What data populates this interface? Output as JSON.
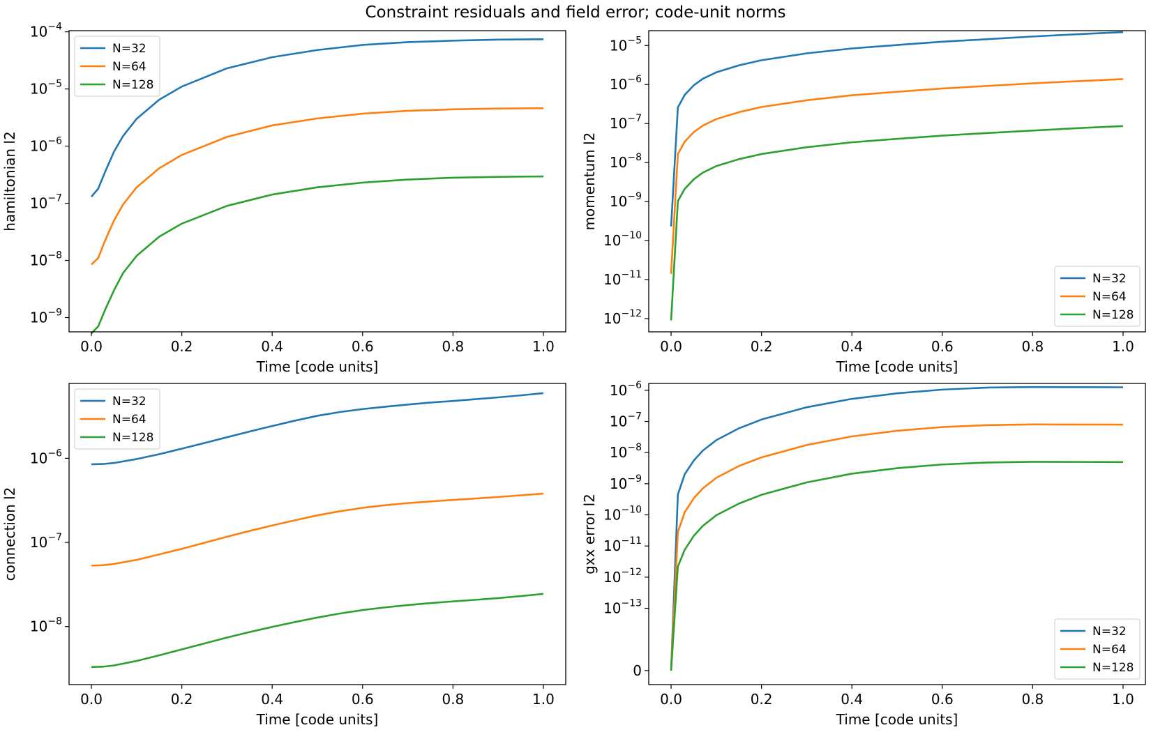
{
  "figure": {
    "title": "Constraint residuals and field error; code-unit norms"
  },
  "colors": {
    "N=32": "#1f77b4",
    "N=64": "#ff7f0e",
    "N=128": "#2ca02c"
  },
  "chart_data": [
    {
      "type": "line",
      "yscale": "log",
      "xlabel": "Time [code units]",
      "ylabel": "hamiltonian l2",
      "xlim": [
        0.0,
        1.0
      ],
      "ylim_log10": [
        -9.25,
        -3.98
      ],
      "xticks": [
        "0.0",
        "0.2",
        "0.4",
        "0.6",
        "0.8",
        "1.0"
      ],
      "yticks": [
        {
          "base": "10",
          "exp": "−9",
          "log10": -9
        },
        {
          "base": "10",
          "exp": "−8",
          "log10": -8
        },
        {
          "base": "10",
          "exp": "−7",
          "log10": -7
        },
        {
          "base": "10",
          "exp": "−6",
          "log10": -6
        },
        {
          "base": "10",
          "exp": "−5",
          "log10": -5
        },
        {
          "base": "10",
          "exp": "−4",
          "log10": -4
        }
      ],
      "legend": "upper-left",
      "series": [
        {
          "name": "N=32",
          "x": [
            0,
            0.015,
            0.03,
            0.05,
            0.07,
            0.1,
            0.15,
            0.2,
            0.3,
            0.4,
            0.5,
            0.6,
            0.7,
            0.8,
            0.9,
            1.0
          ],
          "y": [
            1.3e-07,
            1.8e-07,
            3.5e-07,
            8e-07,
            1.5e-06,
            3e-06,
            6.5e-06,
            1.1e-05,
            2.3e-05,
            3.6e-05,
            4.8e-05,
            5.9e-05,
            6.6e-05,
            7e-05,
            7.3e-05,
            7.4e-05
          ]
        },
        {
          "name": "N=64",
          "x": [
            0,
            0.015,
            0.03,
            0.05,
            0.07,
            0.1,
            0.15,
            0.2,
            0.3,
            0.4,
            0.5,
            0.6,
            0.7,
            0.8,
            0.9,
            1.0
          ],
          "y": [
            8.5e-09,
            1.1e-08,
            2.2e-08,
            5e-08,
            9.5e-08,
            1.9e-07,
            4.1e-07,
            7e-07,
            1.45e-06,
            2.3e-06,
            3.05e-06,
            3.7e-06,
            4.15e-06,
            4.4e-06,
            4.55e-06,
            4.6e-06
          ]
        },
        {
          "name": "N=128",
          "x": [
            0,
            0.015,
            0.03,
            0.05,
            0.07,
            0.1,
            0.15,
            0.2,
            0.3,
            0.4,
            0.5,
            0.6,
            0.7,
            0.8,
            0.9,
            1.0
          ],
          "y": [
            5.3e-10,
            7e-10,
            1.35e-09,
            3e-09,
            6e-09,
            1.2e-08,
            2.6e-08,
            4.4e-08,
            9e-08,
            1.42e-07,
            1.9e-07,
            2.3e-07,
            2.6e-07,
            2.8e-07,
            2.9e-07,
            2.95e-07
          ]
        }
      ]
    },
    {
      "type": "line",
      "yscale": "log",
      "xlabel": "Time [code units]",
      "ylabel": "momentum l2",
      "xlim": [
        0.0,
        1.0
      ],
      "ylim_log10": [
        -12.34,
        -4.62
      ],
      "xticks": [
        "0.0",
        "0.2",
        "0.4",
        "0.6",
        "0.8",
        "1.0"
      ],
      "yticks": [
        {
          "base": "10",
          "exp": "−12",
          "log10": -12
        },
        {
          "base": "10",
          "exp": "−11",
          "log10": -11
        },
        {
          "base": "10",
          "exp": "−10",
          "log10": -10
        },
        {
          "base": "10",
          "exp": "−9",
          "log10": -9
        },
        {
          "base": "10",
          "exp": "−8",
          "log10": -8
        },
        {
          "base": "10",
          "exp": "−7",
          "log10": -7
        },
        {
          "base": "10",
          "exp": "−6",
          "log10": -6
        },
        {
          "base": "10",
          "exp": "−5",
          "log10": -5
        }
      ],
      "legend": "lower-right",
      "series": [
        {
          "name": "N=32",
          "x": [
            0,
            0.015,
            0.03,
            0.05,
            0.07,
            0.1,
            0.15,
            0.2,
            0.3,
            0.4,
            0.5,
            0.6,
            0.7,
            0.8,
            0.9,
            1.0
          ],
          "y": [
            2.3e-10,
            2.6e-07,
            5.4e-07,
            9.5e-07,
            1.4e-06,
            2.05e-06,
            3.1e-06,
            4.2e-06,
            6.3e-06,
            8.4e-06,
            1.03e-05,
            1.25e-05,
            1.45e-05,
            1.7e-05,
            1.95e-05,
            2.2e-05
          ]
        },
        {
          "name": "N=64",
          "x": [
            0,
            0.015,
            0.03,
            0.05,
            0.07,
            0.1,
            0.15,
            0.2,
            0.3,
            0.4,
            0.5,
            0.6,
            0.7,
            0.8,
            0.9,
            1.0
          ],
          "y": [
            1.4e-11,
            1.65e-08,
            3.4e-08,
            6e-08,
            8.8e-08,
            1.3e-07,
            1.95e-07,
            2.65e-07,
            3.95e-07,
            5.3e-07,
            6.5e-07,
            7.9e-07,
            9.2e-07,
            1.07e-06,
            1.22e-06,
            1.38e-06
          ]
        },
        {
          "name": "N=128",
          "x": [
            0,
            0.015,
            0.03,
            0.05,
            0.07,
            0.1,
            0.15,
            0.2,
            0.3,
            0.4,
            0.5,
            0.6,
            0.7,
            0.8,
            0.9,
            1.0
          ],
          "y": [
            9e-13,
            1.03e-09,
            2.1e-09,
            3.7e-09,
            5.5e-09,
            8.1e-09,
            1.22e-08,
            1.65e-08,
            2.47e-08,
            3.3e-08,
            4.05e-08,
            4.9e-08,
            5.7e-08,
            6.6e-08,
            7.6e-08,
            8.6e-08
          ]
        }
      ]
    },
    {
      "type": "line",
      "yscale": "log",
      "xlabel": "Time [code units]",
      "ylabel": "connection l2",
      "xlim": [
        0.0,
        1.0
      ],
      "ylim_log10": [
        -8.69,
        -5.11
      ],
      "xticks": [
        "0.0",
        "0.2",
        "0.4",
        "0.6",
        "0.8",
        "1.0"
      ],
      "yticks": [
        {
          "base": "10",
          "exp": "−8",
          "log10": -8
        },
        {
          "base": "10",
          "exp": "−7",
          "log10": -7
        },
        {
          "base": "10",
          "exp": "−6",
          "log10": -6
        }
      ],
      "legend": "upper-left",
      "series": [
        {
          "name": "N=32",
          "x": [
            0,
            0.025,
            0.05,
            0.1,
            0.15,
            0.2,
            0.25,
            0.3,
            0.35,
            0.4,
            0.45,
            0.5,
            0.55,
            0.6,
            0.65,
            0.7,
            0.75,
            0.8,
            0.85,
            0.9,
            0.95,
            1.0
          ],
          "y": [
            8.5e-07,
            8.55e-07,
            8.8e-07,
            9.8e-07,
            1.12e-06,
            1.3e-06,
            1.52e-06,
            1.78e-06,
            2.08e-06,
            2.42e-06,
            2.8e-06,
            3.2e-06,
            3.55e-06,
            3.85e-06,
            4.1e-06,
            4.35e-06,
            4.6e-06,
            4.8e-06,
            5.05e-06,
            5.3e-06,
            5.6e-06,
            5.95e-06
          ]
        },
        {
          "name": "N=64",
          "x": [
            0,
            0.025,
            0.05,
            0.1,
            0.15,
            0.2,
            0.25,
            0.3,
            0.35,
            0.4,
            0.45,
            0.5,
            0.55,
            0.6,
            0.65,
            0.7,
            0.75,
            0.8,
            0.85,
            0.9,
            0.95,
            1.0
          ],
          "y": [
            5.3e-08,
            5.35e-08,
            5.55e-08,
            6.2e-08,
            7.2e-08,
            8.4e-08,
            9.9e-08,
            1.17e-07,
            1.37e-07,
            1.59e-07,
            1.83e-07,
            2.1e-07,
            2.35e-07,
            2.58e-07,
            2.77e-07,
            2.93e-07,
            3.07e-07,
            3.2e-07,
            3.33e-07,
            3.47e-07,
            3.63e-07,
            3.8e-07
          ]
        },
        {
          "name": "N=128",
          "x": [
            0,
            0.025,
            0.05,
            0.1,
            0.15,
            0.2,
            0.25,
            0.3,
            0.35,
            0.4,
            0.45,
            0.5,
            0.55,
            0.6,
            0.65,
            0.7,
            0.75,
            0.8,
            0.85,
            0.9,
            0.95,
            1.0
          ],
          "y": [
            3.3e-09,
            3.33e-09,
            3.45e-09,
            3.9e-09,
            4.55e-09,
            5.35e-09,
            6.3e-09,
            7.4e-09,
            8.6e-09,
            9.9e-09,
            1.13e-08,
            1.28e-08,
            1.43e-08,
            1.57e-08,
            1.69e-08,
            1.8e-08,
            1.9e-08,
            1.99e-08,
            2.08e-08,
            2.18e-08,
            2.3e-08,
            2.45e-08
          ]
        }
      ]
    },
    {
      "type": "line",
      "yscale": "symlog-like",
      "xlabel": "Time [code units]",
      "ylabel": "gxx error l2",
      "xlim": [
        0.0,
        1.0
      ],
      "ylim_log10": [
        -15.45,
        -5.78
      ],
      "xticks": [
        "0.0",
        "0.2",
        "0.4",
        "0.6",
        "0.8",
        "1.0"
      ],
      "yticks": [
        {
          "base": "0",
          "exp": "",
          "log10": -15.0
        },
        {
          "base": "10",
          "exp": "−13",
          "log10": -13
        },
        {
          "base": "10",
          "exp": "−12",
          "log10": -12
        },
        {
          "base": "10",
          "exp": "−11",
          "log10": -11
        },
        {
          "base": "10",
          "exp": "−10",
          "log10": -10
        },
        {
          "base": "10",
          "exp": "−9",
          "log10": -9
        },
        {
          "base": "10",
          "exp": "−8",
          "log10": -8
        },
        {
          "base": "10",
          "exp": "−7",
          "log10": -7
        },
        {
          "base": "10",
          "exp": "−6",
          "log10": -6
        }
      ],
      "legend": "lower-right",
      "series": [
        {
          "name": "N=32",
          "x": [
            0,
            0.015,
            0.03,
            0.05,
            0.07,
            0.1,
            0.15,
            0.2,
            0.3,
            0.4,
            0.5,
            0.6,
            0.7,
            0.8,
            0.9,
            1.0
          ],
          "y": [
            0,
            4.5e-10,
            2e-09,
            5.5e-09,
            1.15e-08,
            2.5e-08,
            6e-08,
            1.15e-07,
            2.85e-07,
            5.3e-07,
            8e-07,
            1.05e-06,
            1.22e-06,
            1.27e-06,
            1.26e-06,
            1.25e-06
          ]
        },
        {
          "name": "N=64",
          "x": [
            0,
            0.015,
            0.03,
            0.05,
            0.07,
            0.1,
            0.15,
            0.2,
            0.3,
            0.4,
            0.5,
            0.6,
            0.7,
            0.8,
            0.9,
            1.0
          ],
          "y": [
            0,
            2.8e-11,
            1.2e-10,
            3.4e-10,
            7e-10,
            1.55e-09,
            3.7e-09,
            7e-09,
            1.75e-08,
            3.3e-08,
            5e-08,
            6.6e-08,
            7.6e-08,
            8e-08,
            7.95e-08,
            7.9e-08
          ]
        },
        {
          "name": "N=128",
          "x": [
            0,
            0.015,
            0.03,
            0.05,
            0.07,
            0.1,
            0.15,
            0.2,
            0.3,
            0.4,
            0.5,
            0.6,
            0.7,
            0.8,
            0.9,
            1.0
          ],
          "y": [
            0,
            2.2e-12,
            7.5e-12,
            2.1e-11,
            4.4e-11,
            9.7e-11,
            2.3e-10,
            4.4e-10,
            1.1e-09,
            2.1e-09,
            3.15e-09,
            4.15e-09,
            4.8e-09,
            5.05e-09,
            5e-09,
            4.95e-09
          ]
        }
      ]
    }
  ]
}
